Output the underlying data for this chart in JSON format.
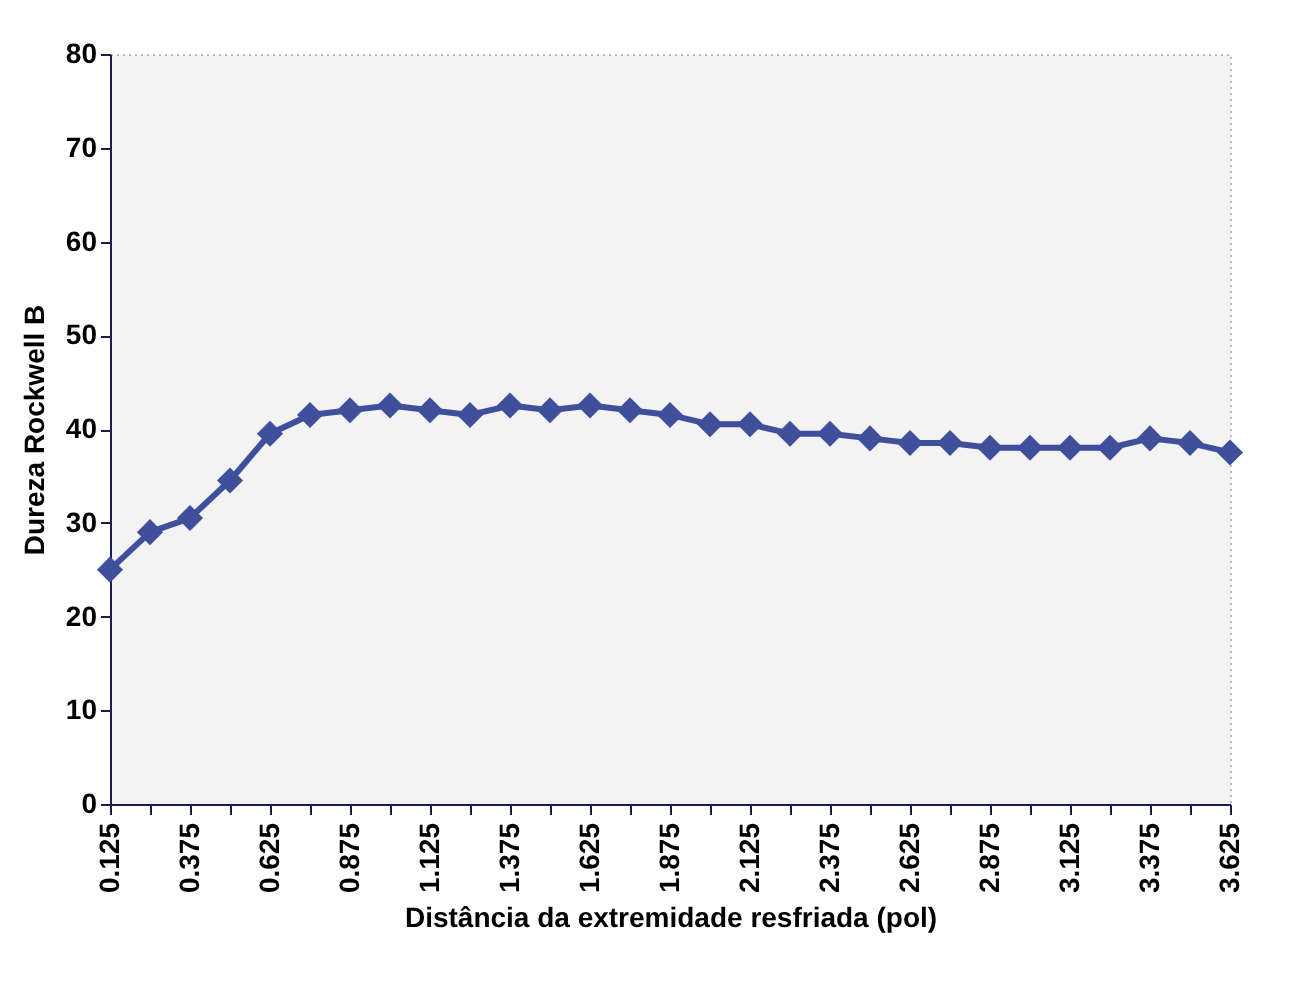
{
  "chart_data": {
    "type": "line",
    "xlabel": "Distância da extremidade resfriada (pol)",
    "ylabel": "Dureza Rockwell B",
    "x": [
      0.125,
      0.25,
      0.375,
      0.5,
      0.625,
      0.75,
      0.875,
      1,
      1.125,
      1.25,
      1.375,
      1.5,
      1.625,
      1.75,
      1.875,
      2,
      2.125,
      2.25,
      2.375,
      2.5,
      2.625,
      2.75,
      2.875,
      3,
      3.125,
      3.25,
      3.375,
      3.5,
      3.625
    ],
    "series": [
      {
        "color": "#3f4f9c",
        "values": [
          25,
          29,
          30.5,
          34.5,
          39.5,
          41.5,
          42,
          42.5,
          42,
          41.5,
          42.5,
          42,
          42.5,
          42,
          41.5,
          40.5,
          40.5,
          39.5,
          39.5,
          39,
          38.5,
          38.5,
          38,
          38,
          38,
          38,
          39,
          38.5,
          37.5
        ]
      }
    ],
    "xlim": [
      0.125,
      3.625
    ],
    "xticks": [
      0.125,
      {
        "value": 0.25,
        "label": null
      },
      0.375,
      {
        "value": 0.5,
        "label": null
      },
      0.625,
      {
        "value": 0.75,
        "label": null
      },
      0.875,
      {
        "value": 1,
        "label": null
      },
      1.125,
      {
        "value": 1.25,
        "label": null
      },
      1.375,
      {
        "value": 1.5,
        "label": null
      },
      1.625,
      {
        "value": 1.75,
        "label": null
      },
      1.875,
      {
        "value": 2,
        "label": null
      },
      2.125,
      {
        "value": 2.25,
        "label": null
      },
      2.375,
      {
        "value": 2.5,
        "label": null
      },
      2.625,
      {
        "value": 2.75,
        "label": null
      },
      2.875,
      {
        "value": 3,
        "label": null
      },
      3.125,
      {
        "value": 3.25,
        "label": null
      },
      3.375,
      {
        "value": 3.5,
        "label": null
      },
      3.625
    ],
    "ylim": [
      0,
      80
    ],
    "yticks": [
      0,
      10,
      20,
      30,
      40,
      50,
      60,
      70,
      80
    ],
    "grid": false,
    "marker": "diamond",
    "line_style": "solid"
  }
}
